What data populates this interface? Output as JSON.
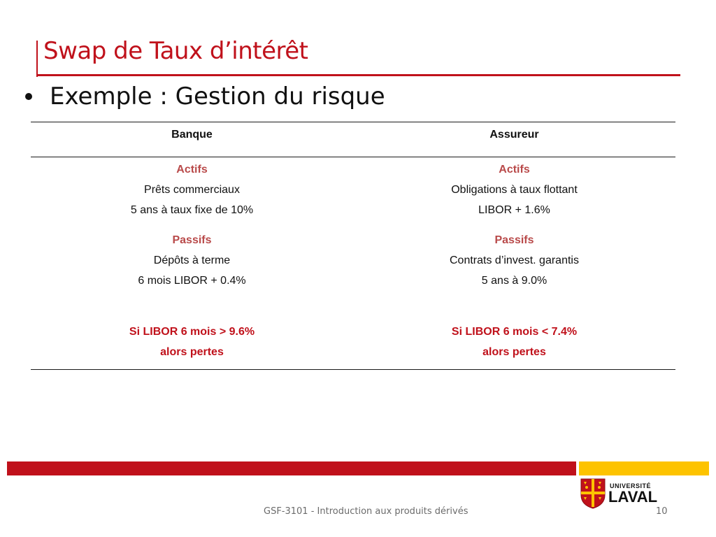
{
  "slide": {
    "title": "Swap de Taux d’intérêt",
    "bullet": "Exemple : Gestion du risque"
  },
  "table": {
    "headers": [
      "Banque",
      "Assureur"
    ],
    "banque": {
      "assets_label": "Actifs",
      "assets_line1": "Prêts commerciaux",
      "assets_line2": "5 ans à taux fixe de 10%",
      "liab_label": "Passifs",
      "liab_line1": "Dépôts à terme",
      "liab_line2": "6 mois LIBOR + 0.4%",
      "risk_line1": "Si LIBOR 6 mois > 9.6%",
      "risk_line2": "alors pertes"
    },
    "assureur": {
      "assets_label": "Actifs",
      "assets_line1": "Obligations à taux flottant",
      "assets_line2": "LIBOR + 1.6%",
      "liab_label": "Passifs",
      "liab_line1": "Contrats d’invest. garantis",
      "liab_line2": "5 ans à 9.0%",
      "risk_line1": "Si LIBOR 6 mois < 7.4%",
      "risk_line2": "alors pertes"
    }
  },
  "footer": {
    "course": "GSF-3101 - Introduction aux produits dérivés",
    "page": "10"
  },
  "logo": {
    "line1": "UNIVERSITÉ",
    "line2": "LAVAL"
  },
  "colors": {
    "accent_red": "#c0111b",
    "accent_gold": "#fdc300",
    "label_red": "#b94a4a"
  }
}
